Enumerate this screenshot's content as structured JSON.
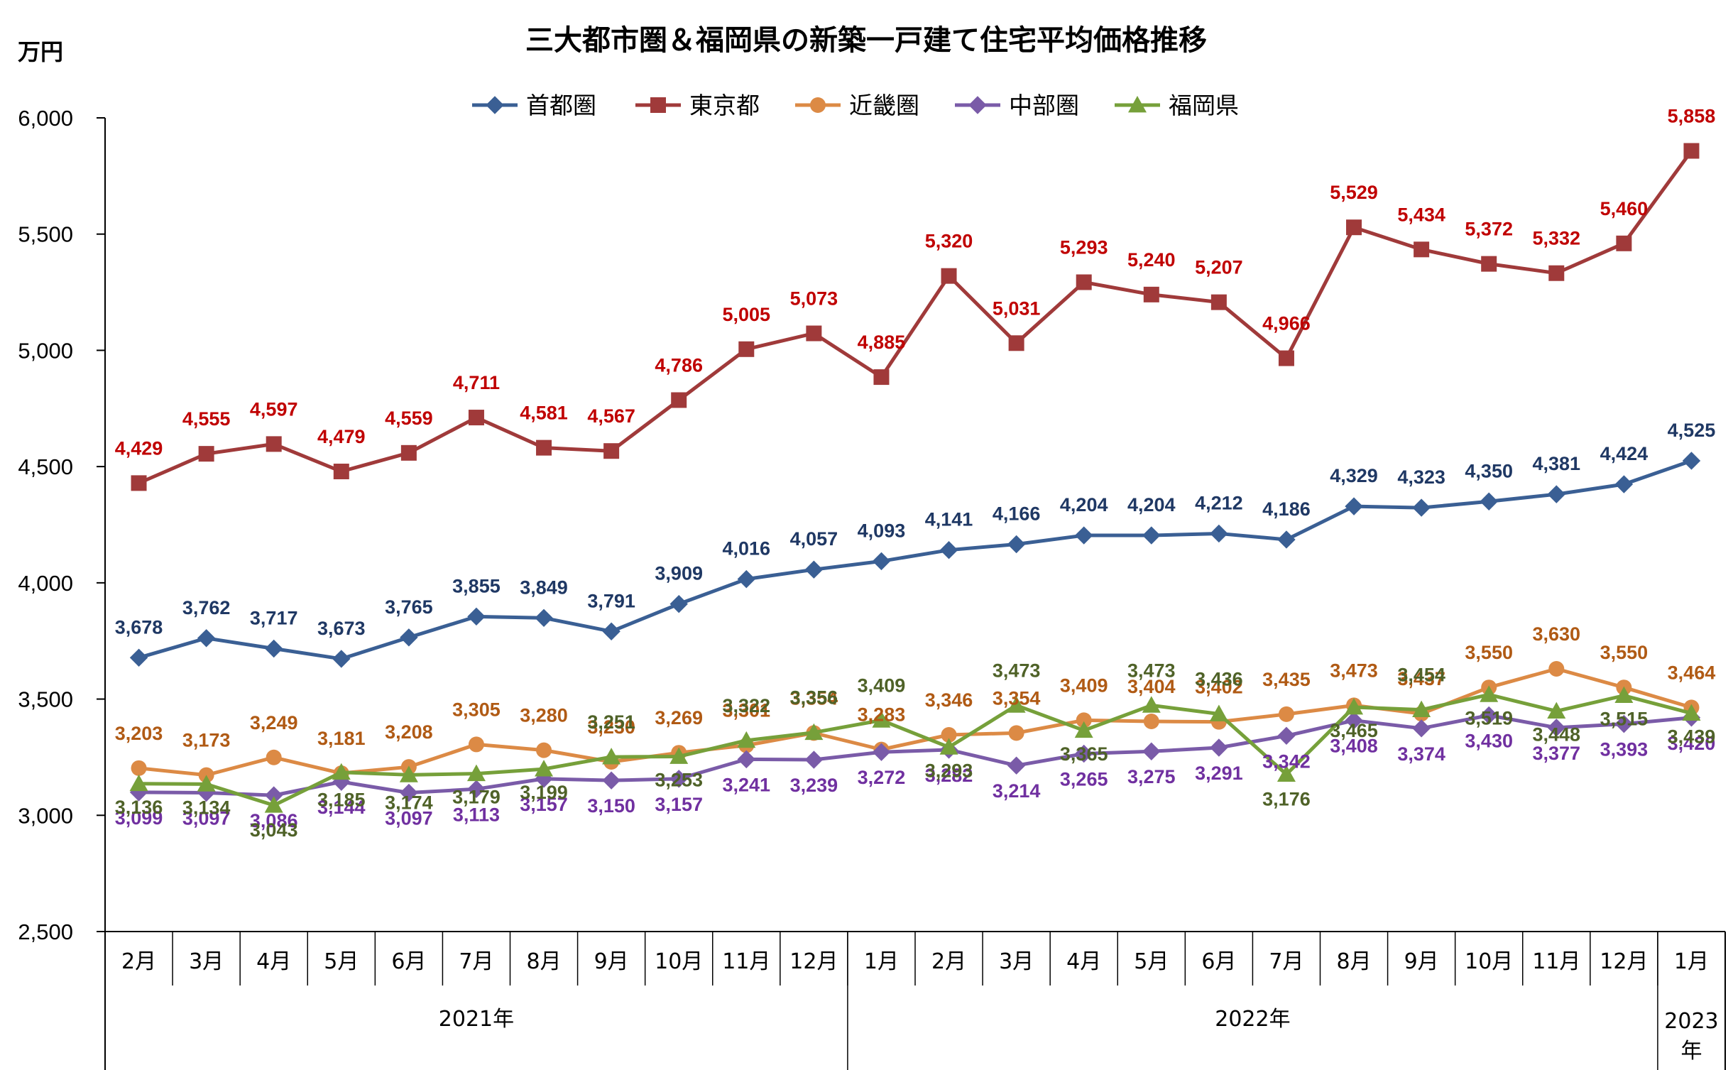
{
  "chart_data": {
    "type": "line",
    "title": "三大都市圏＆福岡県の新築一戸建て住宅平均価格推移",
    "ylabel": "万円",
    "ylim": [
      2500,
      6000
    ],
    "yticks": [
      "2,500",
      "3,000",
      "3,500",
      "4,000",
      "4,500",
      "5,000",
      "5,500",
      "6,000"
    ],
    "ytick_values": [
      2500,
      3000,
      3500,
      4000,
      4500,
      5000,
      5500,
      6000
    ],
    "categories": [
      "2月",
      "3月",
      "4月",
      "5月",
      "6月",
      "7月",
      "8月",
      "9月",
      "10月",
      "11月",
      "12月",
      "1月",
      "2月",
      "3月",
      "4月",
      "5月",
      "6月",
      "7月",
      "8月",
      "9月",
      "10月",
      "11月",
      "12月",
      "1月"
    ],
    "year_groups": [
      {
        "label": "2021年",
        "start": 0,
        "end": 10
      },
      {
        "label": "2022年",
        "start": 11,
        "end": 22
      },
      {
        "label": "2023\n年",
        "start": 23,
        "end": 23
      }
    ],
    "grid": false,
    "legend_position": "top",
    "series": [
      {
        "name": "首都圏",
        "color": "#3A5F94",
        "label_color": "#1F3864",
        "marker": "diamond",
        "values": [
          3678,
          3762,
          3717,
          3673,
          3765,
          3855,
          3849,
          3791,
          3909,
          4016,
          4057,
          4093,
          4141,
          4166,
          4204,
          4204,
          4212,
          4186,
          4329,
          4323,
          4350,
          4381,
          4424,
          4525
        ],
        "labels": [
          "3,678",
          "3,762",
          "3,717",
          "3,673",
          "3,765",
          "3,855",
          "3,849",
          "3,791",
          "3,909",
          "4,016",
          "4,057",
          "4,093",
          "4,141",
          "4,166",
          "4,204",
          "4,204",
          "4,212",
          "4,186",
          "4,329",
          "4,323",
          "4,350",
          "4,381",
          "4,424",
          "4,525"
        ]
      },
      {
        "name": "東京都",
        "color": "#A03A3A",
        "label_color": "#C00000",
        "marker": "square",
        "values": [
          4429,
          4555,
          4597,
          4479,
          4559,
          4711,
          4581,
          4567,
          4786,
          5005,
          5073,
          4885,
          5320,
          5031,
          5293,
          5240,
          5207,
          4966,
          5529,
          5434,
          5372,
          5332,
          5460,
          5858
        ],
        "labels": [
          "4,429",
          "4,555",
          "4,597",
          "4,479",
          "4,559",
          "4,711",
          "4,581",
          "4,567",
          "4,786",
          "5,005",
          "5,073",
          "4,885",
          "5,320",
          "5,031",
          "5,293",
          "5,240",
          "5,207",
          "4,966",
          "5,529",
          "5,434",
          "5,372",
          "5,332",
          "5,460",
          "5,858"
        ]
      },
      {
        "name": "近畿圏",
        "color": "#DC8A45",
        "label_color": "#B05A14",
        "marker": "circle",
        "values": [
          3203,
          3173,
          3249,
          3181,
          3208,
          3305,
          3280,
          3230,
          3269,
          3301,
          3354,
          3283,
          3346,
          3354,
          3409,
          3404,
          3402,
          3435,
          3473,
          3437,
          3550,
          3630,
          3550,
          3464
        ],
        "labels": [
          "3,203",
          "3,173",
          "3,249",
          "3,181",
          "3,208",
          "3,305",
          "3,280",
          "3,230",
          "3,269",
          "3,301",
          "3,354",
          "3,283",
          "3,346",
          "3,354",
          "3,409",
          "3,404",
          "3,402",
          "3,435",
          "3,473",
          "3,437",
          "3,550",
          "3,630",
          "3,550",
          "3,464"
        ]
      },
      {
        "name": "中部圏",
        "color": "#7A5BA8",
        "label_color": "#7030A0",
        "marker": "diamond",
        "values": [
          3099,
          3097,
          3086,
          3144,
          3097,
          3113,
          3157,
          3150,
          3157,
          3241,
          3239,
          3272,
          3282,
          3214,
          3265,
          3275,
          3291,
          3342,
          3408,
          3374,
          3430,
          3377,
          3393,
          3420
        ],
        "labels": [
          "3,099",
          "3,097",
          "3,086",
          "3,144",
          "3,097",
          "3,113",
          "3,157",
          "3,150",
          "3,157",
          "3,241",
          "3,239",
          "3,272",
          "3,282",
          "3,214",
          "3,265",
          "3,275",
          "3,291",
          "3,342",
          "3,408",
          "3,374",
          "3,430",
          "3,377",
          "3,393",
          "3,420"
        ]
      },
      {
        "name": "福岡県",
        "color": "#76A03A",
        "label_color": "#4F6228",
        "marker": "triangle",
        "values": [
          3136,
          3134,
          3043,
          3185,
          3174,
          3179,
          3199,
          3251,
          3253,
          3322,
          3356,
          3409,
          3293,
          3473,
          3365,
          3473,
          3436,
          3176,
          3465,
          3454,
          3519,
          3448,
          3515,
          3439
        ],
        "labels": [
          "3,136",
          "3,134",
          "3,043",
          "3,185",
          "3,174",
          "3,179",
          "3,199",
          "3,251",
          "3,253",
          "3,322",
          "3,356",
          "3,409",
          "3,293",
          "3,473",
          "3,365",
          "3,473",
          "3,436",
          "3,176",
          "3,465",
          "3,454",
          "3,519",
          "3,448",
          "3,515",
          "3,439"
        ]
      }
    ]
  }
}
